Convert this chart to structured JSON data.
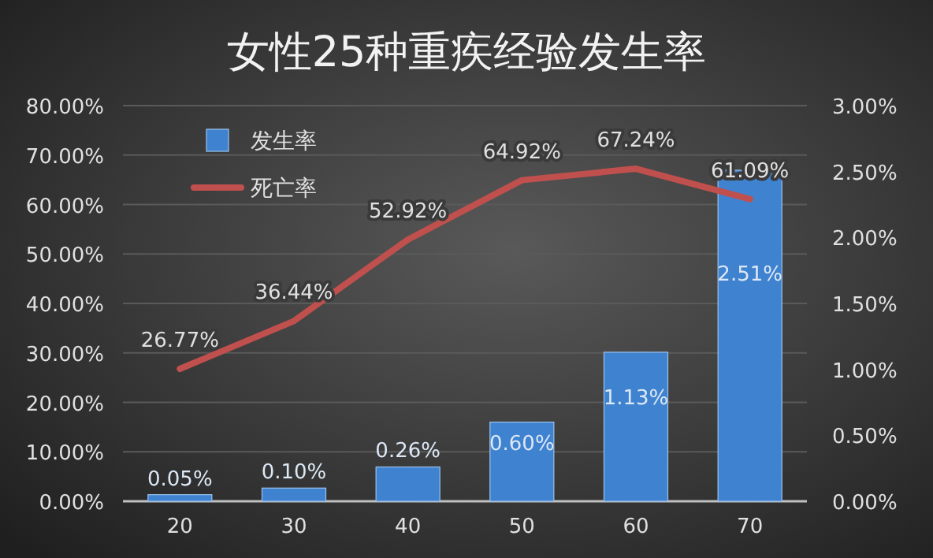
{
  "chart_data": {
    "type": "bar",
    "title": "女性25种重疾经验发生率",
    "categories": [
      "20",
      "30",
      "40",
      "50",
      "60",
      "70"
    ],
    "series": [
      {
        "name": "发生率",
        "axis": "y2",
        "color": "#3f82d0",
        "values": [
          0.05,
          0.1,
          0.26,
          0.6,
          1.13,
          2.51
        ],
        "value_labels": [
          "0.05%",
          "0.10%",
          "0.26%",
          "0.60%",
          "1.13%",
          "2.51%"
        ]
      },
      {
        "name": "死亡率",
        "type": "line",
        "color": "#c0504d",
        "values": [
          26.77,
          36.44,
          52.92,
          64.92,
          67.24,
          61.09
        ],
        "value_labels": [
          "26.77%",
          "36.44%",
          "52.92%",
          "64.92%",
          "67.24%",
          "61.09%"
        ]
      }
    ],
    "ylim": [
      0,
      80
    ],
    "yticks": [
      {
        "value": 0,
        "label": "0.00%"
      },
      {
        "value": 10,
        "label": "10.00%"
      },
      {
        "value": 20,
        "label": "20.00%"
      },
      {
        "value": 30,
        "label": "30.00%"
      },
      {
        "value": 40,
        "label": "40.00%"
      },
      {
        "value": 50,
        "label": "50.00%"
      },
      {
        "value": 60,
        "label": "60.00%"
      },
      {
        "value": 70,
        "label": "70.00%"
      },
      {
        "value": 80,
        "label": "80.00%"
      }
    ],
    "y2lim": [
      0,
      3
    ],
    "y2ticks": [
      {
        "value": 0,
        "label": "0.00%"
      },
      {
        "value": 0.5,
        "label": "0.50%"
      },
      {
        "value": 1,
        "label": "1.00%"
      },
      {
        "value": 1.5,
        "label": "1.50%"
      },
      {
        "value": 2,
        "label": "2.00%"
      },
      {
        "value": 2.5,
        "label": "2.50%"
      },
      {
        "value": 3,
        "label": "3.00%"
      }
    ],
    "grid": "y",
    "legend": "top left"
  }
}
